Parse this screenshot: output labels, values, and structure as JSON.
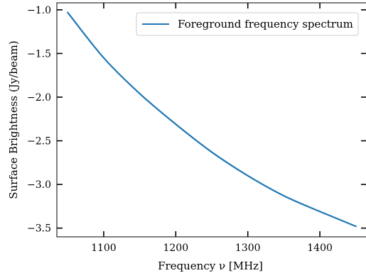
{
  "chart_data": {
    "type": "line",
    "title": "",
    "xlabel": "Frequency ν [MHz]",
    "ylabel": "Surface Brightness (Jy/beam)",
    "xlim": [
      1035,
      1465
    ],
    "ylim": [
      -3.6,
      -0.92
    ],
    "x_ticks": [
      1100,
      1200,
      1300,
      1400
    ],
    "x_tick_labels": [
      "1100",
      "1200",
      "1300",
      "1400"
    ],
    "y_ticks": [
      -1.0,
      -1.5,
      -2.0,
      -2.5,
      -3.0,
      -3.5
    ],
    "y_tick_labels": [
      "−1.0",
      "−1.5",
      "−2.0",
      "−2.5",
      "−3.0",
      "−3.5"
    ],
    "grid": false,
    "legend_position": "top-right",
    "colors": {
      "series": "#1f77b4"
    },
    "series": [
      {
        "name": "Foreground frequency spectrum",
        "x": [
          1050,
          1100,
          1150,
          1200,
          1250,
          1300,
          1350,
          1400,
          1450
        ],
        "y": [
          -1.03,
          -1.55,
          -1.96,
          -2.31,
          -2.63,
          -2.9,
          -3.13,
          -3.31,
          -3.48
        ]
      }
    ]
  }
}
